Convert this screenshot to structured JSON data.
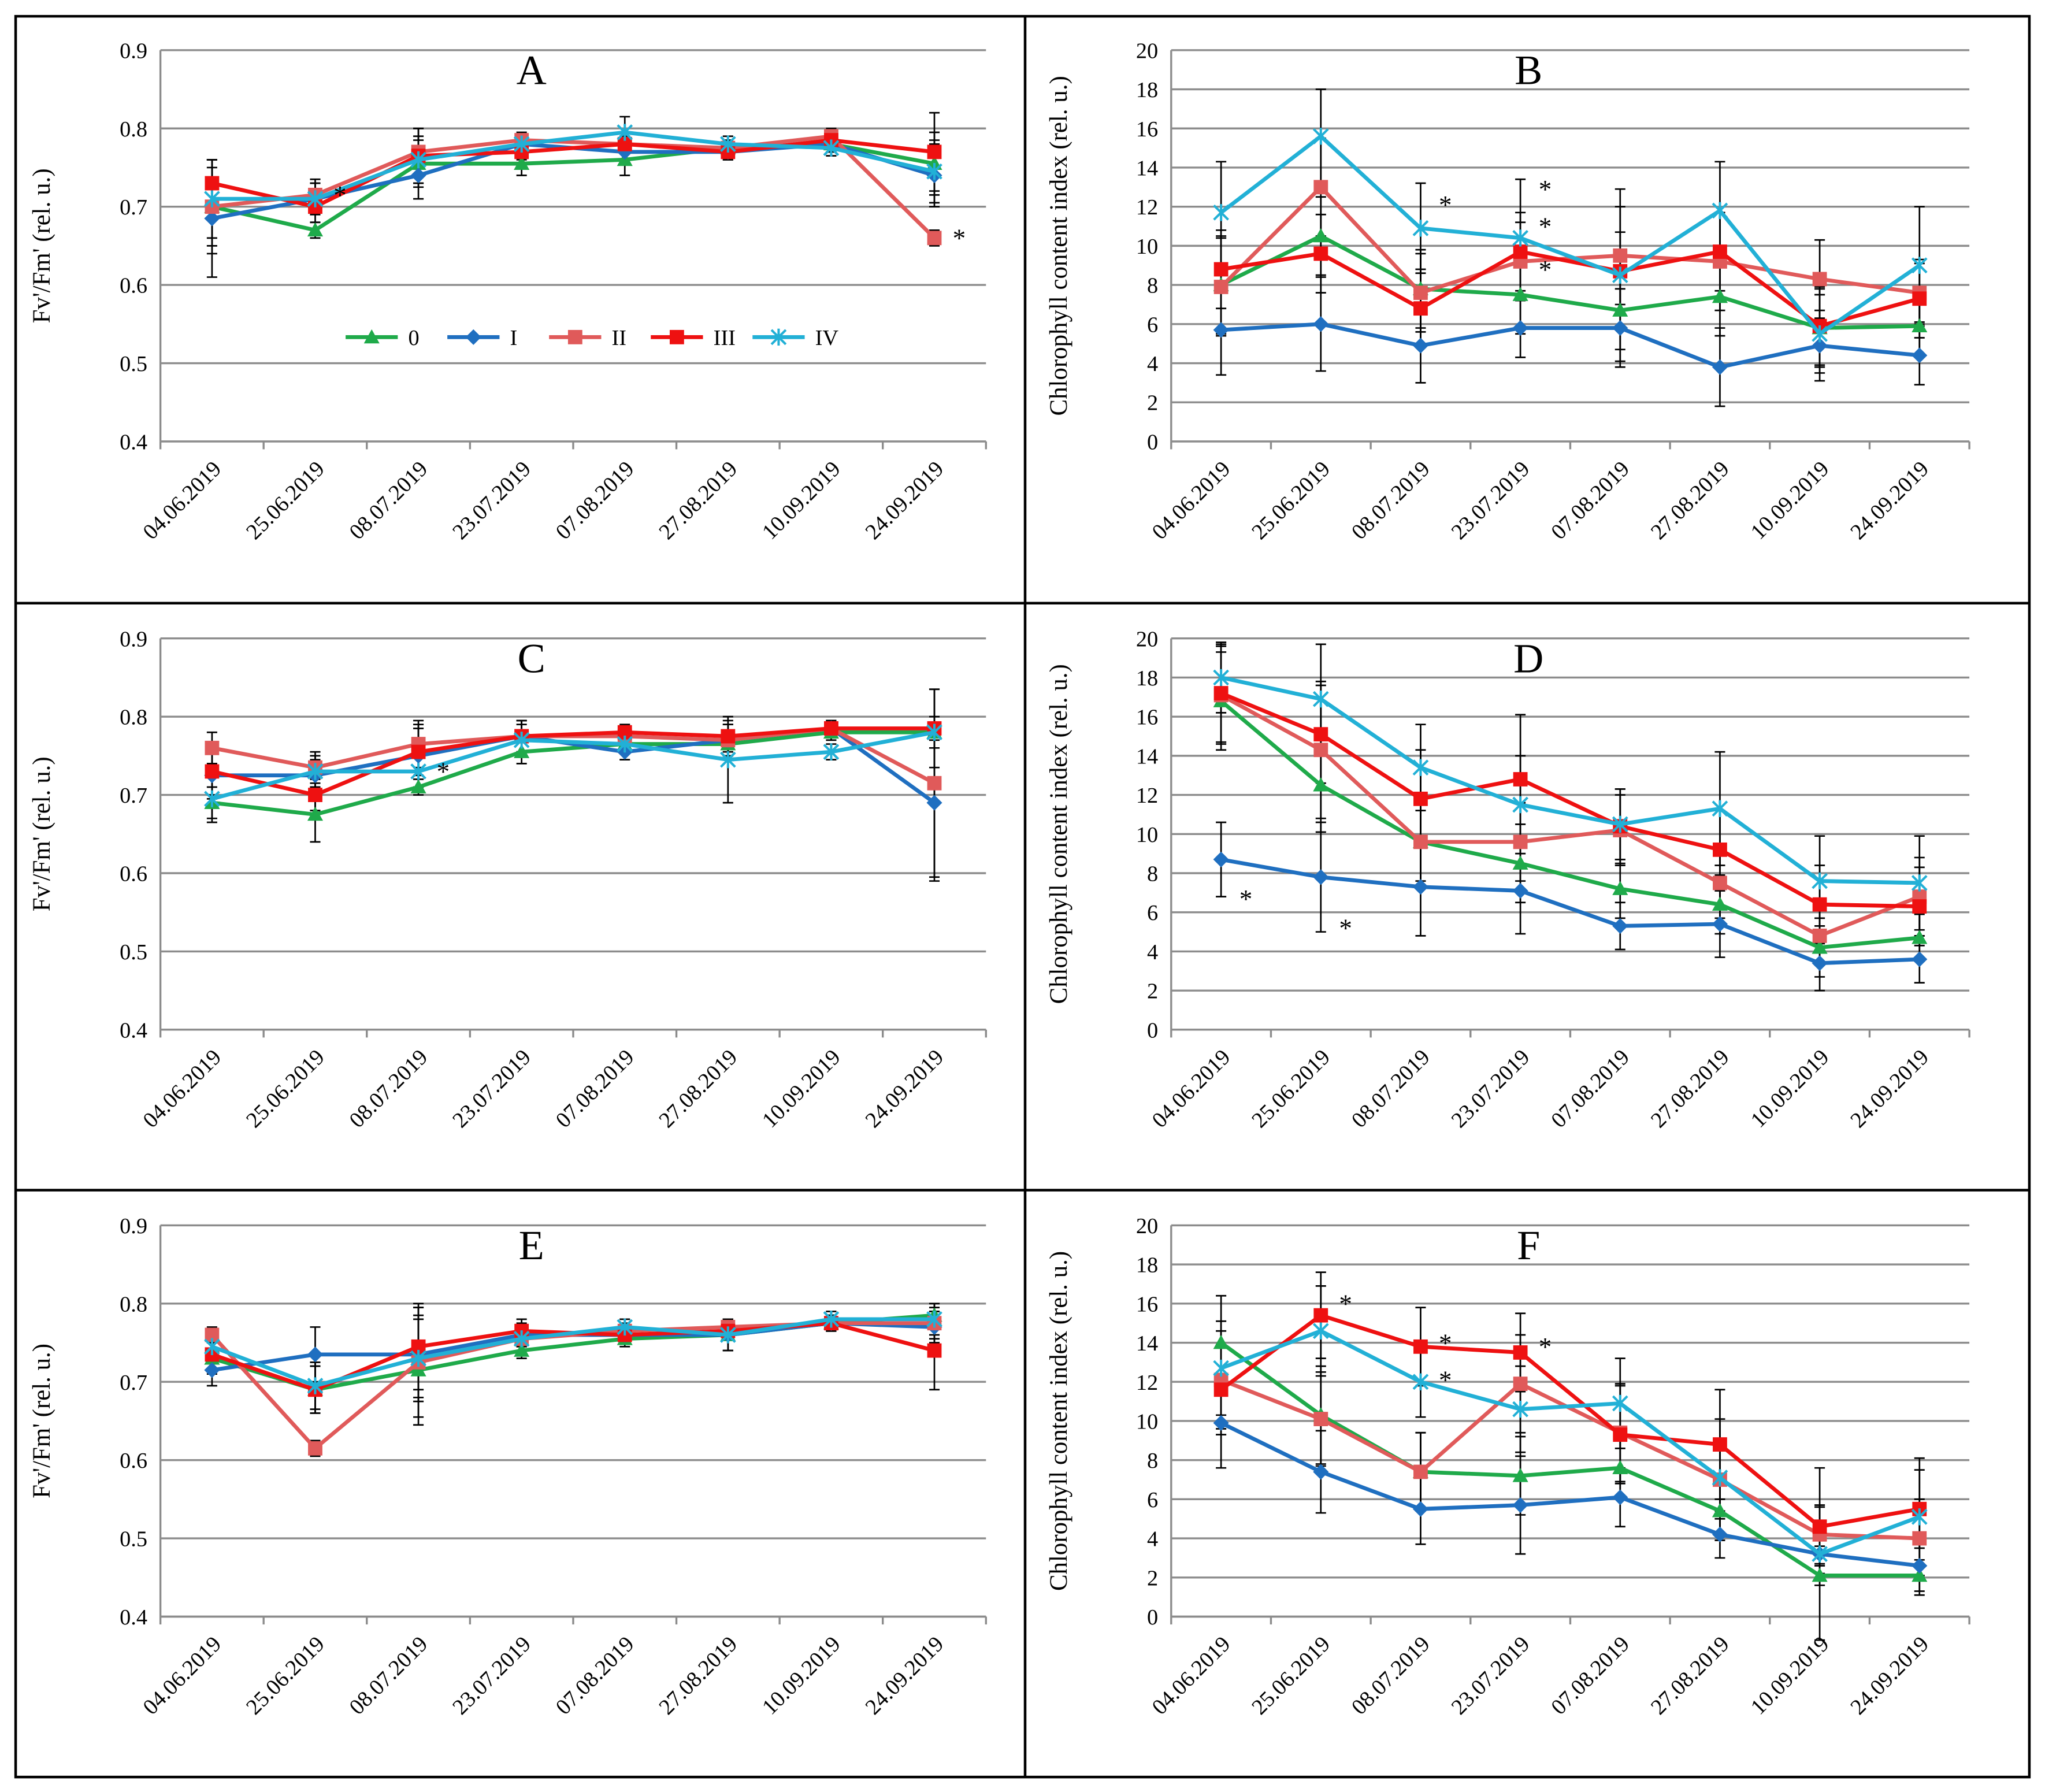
{
  "chart_data": [
    {
      "type": "line",
      "title": "A",
      "y_label": "Fv'/Fm' (rel. u.)",
      "legend": true,
      "grid": true,
      "categories": [
        "04.06.2019",
        "25.06.2019",
        "08.07.2019",
        "23.07.2019",
        "07.08.2019",
        "27.08.2019",
        "10.09.2019",
        "24.09.2019"
      ],
      "ylim": [
        0.4,
        0.9
      ],
      "yticks": [
        0.4,
        0.5,
        0.6,
        0.7,
        0.8,
        0.9
      ],
      "series": [
        {
          "name": "0",
          "color": "#1faa4a",
          "marker": "triangle",
          "values": [
            0.7,
            0.67,
            0.755,
            0.755,
            0.76,
            0.775,
            0.78,
            0.755
          ],
          "errors": [
            0.05,
            0.01,
            0.03,
            0.015,
            0.02,
            0.01,
            0.01,
            0.04
          ]
        },
        {
          "name": "I",
          "color": "#1f6fc0",
          "marker": "diamond",
          "values": [
            0.685,
            0.71,
            0.74,
            0.78,
            0.77,
            0.77,
            0.78,
            0.74
          ],
          "errors": [
            0.075,
            0.02,
            0.03,
            0.01,
            0.01,
            0.01,
            0.01,
            0.04
          ]
        },
        {
          "name": "II",
          "color": "#e05a5a",
          "marker": "square",
          "values": [
            0.7,
            0.715,
            0.77,
            0.785,
            0.78,
            0.775,
            0.79,
            0.66
          ],
          "errors": [
            0.06,
            0.02,
            0.03,
            0.01,
            0.01,
            0.01,
            0.01,
            0.01
          ]
        },
        {
          "name": "III",
          "color": "#ee1111",
          "marker": "square",
          "values": [
            0.73,
            0.7,
            0.765,
            0.77,
            0.78,
            0.77,
            0.785,
            0.77
          ],
          "errors": [
            0.03,
            0.02,
            0.035,
            0.01,
            0.01,
            0.01,
            0.01,
            0.05
          ]
        },
        {
          "name": "IV",
          "color": "#22b0d6",
          "marker": "asterisk",
          "values": [
            0.71,
            0.71,
            0.76,
            0.78,
            0.795,
            0.78,
            0.775,
            0.745
          ],
          "errors": [
            0.05,
            0.02,
            0.03,
            0.01,
            0.02,
            0.01,
            0.01,
            0.04
          ]
        }
      ],
      "annotations": [
        {
          "text": "*",
          "category": 1,
          "y": 0.72
        },
        {
          "text": "*",
          "category": 7,
          "y": 0.665
        }
      ]
    },
    {
      "type": "line",
      "title": "B",
      "y_label": "Chlorophyll content index (rel. u.)",
      "legend": false,
      "grid": true,
      "categories": [
        "04.06.2019",
        "25.06.2019",
        "08.07.2019",
        "23.07.2019",
        "07.08.2019",
        "27.08.2019",
        "10.09.2019",
        "24.09.2019"
      ],
      "ylim": [
        0,
        20
      ],
      "yticks": [
        0,
        2,
        4,
        6,
        8,
        10,
        12,
        14,
        16,
        18,
        20
      ],
      "series": [
        {
          "name": "0",
          "color": "#1faa4a",
          "marker": "triangle",
          "values": [
            8,
            10.5,
            7.8,
            7.5,
            6.7,
            7.4,
            5.8,
            5.9
          ],
          "errors": [
            2.5,
            2,
            2,
            2,
            2,
            2,
            2,
            1.5
          ]
        },
        {
          "name": "I",
          "color": "#1f6fc0",
          "marker": "diamond",
          "values": [
            5.7,
            6,
            4.9,
            5.8,
            5.8,
            3.8,
            4.9,
            4.4
          ],
          "errors": [
            2.3,
            2.4,
            1.9,
            1.5,
            2,
            2,
            1.8,
            1.5
          ]
        },
        {
          "name": "II",
          "color": "#e05a5a",
          "marker": "square",
          "values": [
            7.9,
            13,
            7.6,
            9.2,
            9.5,
            9.2,
            8.3,
            7.6
          ],
          "errors": [
            2.5,
            2.5,
            2,
            2,
            2.5,
            2.5,
            2,
            1.5
          ]
        },
        {
          "name": "III",
          "color": "#ee1111",
          "marker": "square",
          "values": [
            8.8,
            9.6,
            6.8,
            9.7,
            8.7,
            9.7,
            5.9,
            7.3
          ],
          "errors": [
            2,
            2,
            2,
            2,
            2,
            2,
            2,
            2
          ]
        },
        {
          "name": "IV",
          "color": "#22b0d6",
          "marker": "asterisk",
          "values": [
            11.7,
            15.6,
            10.9,
            10.4,
            8.5,
            11.8,
            5.5,
            9
          ],
          "errors": [
            2.6,
            2.4,
            2.3,
            3,
            4.4,
            2.5,
            2,
            3
          ]
        }
      ],
      "annotations": [
        {
          "text": "*",
          "category": 2,
          "y": 12.3
        },
        {
          "text": "*",
          "category": 3,
          "y": 13.1
        },
        {
          "text": "*",
          "category": 3,
          "y": 11.2
        },
        {
          "text": "*",
          "category": 3,
          "y": 9.0
        }
      ]
    },
    {
      "type": "line",
      "title": "C",
      "y_label": "Fv'/Fm' (rel. u.)",
      "legend": false,
      "grid": true,
      "categories": [
        "04.06.2019",
        "25.06.2019",
        "08.07.2019",
        "23.07.2019",
        "07.08.2019",
        "27.08.2019",
        "10.09.2019",
        "24.09.2019"
      ],
      "ylim": [
        0.4,
        0.9
      ],
      "yticks": [
        0.4,
        0.5,
        0.6,
        0.7,
        0.8,
        0.9
      ],
      "series": [
        {
          "name": "0",
          "color": "#1faa4a",
          "marker": "triangle",
          "values": [
            0.69,
            0.675,
            0.71,
            0.755,
            0.765,
            0.765,
            0.78,
            0.78
          ],
          "errors": [
            0.02,
            0.035,
            0.01,
            0.015,
            0.01,
            0.01,
            0.01,
            0.01
          ]
        },
        {
          "name": "I",
          "color": "#1f6fc0",
          "marker": "diamond",
          "values": [
            0.725,
            0.725,
            0.75,
            0.775,
            0.755,
            0.77,
            0.785,
            0.69
          ],
          "errors": [
            0.03,
            0.02,
            0.04,
            0.02,
            0.01,
            0.02,
            0.01,
            0.1
          ]
        },
        {
          "name": "II",
          "color": "#e05a5a",
          "marker": "square",
          "values": [
            0.76,
            0.735,
            0.765,
            0.775,
            0.775,
            0.77,
            0.785,
            0.715
          ],
          "errors": [
            0.02,
            0.02,
            0.03,
            0.02,
            0.01,
            0.02,
            0.01,
            0.12
          ]
        },
        {
          "name": "III",
          "color": "#ee1111",
          "marker": "square",
          "values": [
            0.73,
            0.7,
            0.755,
            0.775,
            0.78,
            0.775,
            0.785,
            0.785
          ],
          "errors": [
            0.03,
            0.02,
            0.03,
            0.02,
            0.01,
            0.02,
            0.01,
            0.05
          ]
        },
        {
          "name": "IV",
          "color": "#22b0d6",
          "marker": "asterisk",
          "values": [
            0.695,
            0.73,
            0.73,
            0.77,
            0.765,
            0.745,
            0.755,
            0.78
          ],
          "errors": [
            0.03,
            0.02,
            0.02,
            0.02,
            0.01,
            0.055,
            0.01,
            0.02
          ]
        }
      ],
      "annotations": [
        {
          "text": "*",
          "category": 2,
          "y": 0.735
        }
      ]
    },
    {
      "type": "line",
      "title": "D",
      "y_label": "Chlorophyll content index (rel. u.)",
      "legend": false,
      "grid": true,
      "categories": [
        "04.06.2019",
        "25.06.2019",
        "08.07.2019",
        "23.07.2019",
        "07.08.2019",
        "27.08.2019",
        "10.09.2019",
        "24.09.2019"
      ],
      "ylim": [
        0,
        20
      ],
      "yticks": [
        0,
        2,
        4,
        6,
        8,
        10,
        12,
        14,
        16,
        18,
        20
      ],
      "series": [
        {
          "name": "0",
          "color": "#1faa4a",
          "marker": "triangle",
          "values": [
            16.8,
            12.5,
            9.6,
            8.5,
            7.2,
            6.4,
            4.2,
            4.7
          ],
          "errors": [
            2.5,
            2.4,
            2,
            2,
            1.5,
            1.5,
            1.5,
            1.2
          ]
        },
        {
          "name": "I",
          "color": "#1f6fc0",
          "marker": "diamond",
          "values": [
            8.7,
            7.8,
            7.3,
            7.1,
            5.3,
            5.4,
            3.4,
            3.6
          ],
          "errors": [
            1.9,
            2.8,
            2.5,
            2.2,
            1.2,
            1.7,
            1.4,
            1.2
          ]
        },
        {
          "name": "II",
          "color": "#e05a5a",
          "marker": "square",
          "values": [
            17.1,
            14.3,
            9.6,
            9.6,
            10.2,
            7.5,
            4.8,
            6.8
          ],
          "errors": [
            2.5,
            3.5,
            2.2,
            2,
            1.8,
            1.8,
            1.5,
            2
          ]
        },
        {
          "name": "III",
          "color": "#ee1111",
          "marker": "square",
          "values": [
            17.2,
            15.1,
            11.8,
            12.8,
            10.4,
            9.2,
            6.4,
            6.3
          ],
          "errors": [
            2.5,
            2.5,
            2.5,
            3.3,
            1.9,
            2,
            2,
            2
          ]
        },
        {
          "name": "IV",
          "color": "#22b0d6",
          "marker": "asterisk",
          "values": [
            18,
            16.9,
            13.4,
            11.5,
            10.5,
            11.3,
            7.6,
            7.5
          ],
          "errors": [
            1.8,
            2.8,
            2.2,
            2.5,
            1.8,
            2.9,
            2.3,
            2.4
          ]
        }
      ],
      "annotations": [
        {
          "text": "*",
          "category": 0,
          "y": 6.9
        },
        {
          "text": "*",
          "category": 1,
          "y": 5.4
        }
      ]
    },
    {
      "type": "line",
      "title": "E",
      "y_label": "Fv'/Fm' (rel. u.)",
      "legend": false,
      "grid": true,
      "categories": [
        "04.06.2019",
        "25.06.2019",
        "08.07.2019",
        "23.07.2019",
        "07.08.2019",
        "27.08.2019",
        "10.09.2019",
        "24.09.2019"
      ],
      "ylim": [
        0.4,
        0.9
      ],
      "yticks": [
        0.4,
        0.5,
        0.6,
        0.7,
        0.8,
        0.9
      ],
      "series": [
        {
          "name": "0",
          "color": "#1faa4a",
          "marker": "triangle",
          "values": [
            0.73,
            0.69,
            0.715,
            0.74,
            0.755,
            0.76,
            0.775,
            0.785
          ],
          "errors": [
            0.02,
            0.03,
            0.07,
            0.01,
            0.01,
            0.02,
            0.01,
            0.015
          ]
        },
        {
          "name": "I",
          "color": "#1f6fc0",
          "marker": "diamond",
          "values": [
            0.715,
            0.735,
            0.735,
            0.76,
            0.76,
            0.76,
            0.775,
            0.77
          ],
          "errors": [
            0.02,
            0.035,
            0.06,
            0.015,
            0.01,
            0.02,
            0.01,
            0.02
          ]
        },
        {
          "name": "II",
          "color": "#e05a5a",
          "marker": "square",
          "values": [
            0.76,
            0.615,
            0.725,
            0.755,
            0.765,
            0.77,
            0.775,
            0.775
          ],
          "errors": [
            0.01,
            0.01,
            0.07,
            0.01,
            0.01,
            0.01,
            0.01,
            0.02
          ]
        },
        {
          "name": "III",
          "color": "#ee1111",
          "marker": "square",
          "values": [
            0.735,
            0.69,
            0.745,
            0.765,
            0.76,
            0.765,
            0.775,
            0.74
          ],
          "errors": [
            0.02,
            0.03,
            0.055,
            0.015,
            0.01,
            0.01,
            0.01,
            0.05
          ]
        },
        {
          "name": "IV",
          "color": "#22b0d6",
          "marker": "asterisk",
          "values": [
            0.745,
            0.695,
            0.73,
            0.755,
            0.77,
            0.76,
            0.78,
            0.78
          ],
          "errors": [
            0.02,
            0.03,
            0.05,
            0.015,
            0.01,
            0.02,
            0.01,
            0.02
          ]
        }
      ],
      "annotations": []
    },
    {
      "type": "line",
      "title": "F",
      "y_label": "Chlorophyll content index (rel. u.)",
      "legend": false,
      "grid": true,
      "categories": [
        "04.06.2019",
        "25.06.2019",
        "08.07.2019",
        "23.07.2019",
        "07.08.2019",
        "27.08.2019",
        "10.09.2019",
        "24.09.2019"
      ],
      "ylim": [
        0,
        20
      ],
      "yticks": [
        0,
        2,
        4,
        6,
        8,
        10,
        12,
        14,
        16,
        18,
        20
      ],
      "series": [
        {
          "name": "0",
          "color": "#1faa4a",
          "marker": "triangle",
          "values": [
            14,
            10.3,
            7.4,
            7.2,
            7.6,
            5.4,
            2.1,
            2.1
          ],
          "errors": [
            2.4,
            2.5,
            2,
            2,
            1.5,
            1.5,
            0.5,
            0.8
          ]
        },
        {
          "name": "I",
          "color": "#1f6fc0",
          "marker": "diamond",
          "values": [
            9.9,
            7.4,
            5.5,
            5.7,
            6.1,
            4.2,
            3.2,
            2.6
          ],
          "errors": [
            2.3,
            2.1,
            1.8,
            2.5,
            1.5,
            1.2,
            1,
            1.5
          ]
        },
        {
          "name": "II",
          "color": "#e05a5a",
          "marker": "square",
          "values": [
            12.1,
            10.1,
            7.4,
            11.9,
            9.4,
            7,
            4.2,
            4
          ],
          "errors": [
            2.5,
            2.4,
            2,
            2.5,
            2.5,
            2,
            1.5,
            2
          ]
        },
        {
          "name": "III",
          "color": "#ee1111",
          "marker": "square",
          "values": [
            11.6,
            15.4,
            13.8,
            13.5,
            9.3,
            8.8,
            4.6,
            5.5
          ],
          "errors": [
            2.3,
            2.2,
            2,
            2,
            2.5,
            2.8,
            1,
            2
          ]
        },
        {
          "name": "IV",
          "color": "#22b0d6",
          "marker": "asterisk",
          "values": [
            12.7,
            14.6,
            12,
            10.6,
            10.9,
            7.1,
            3.2,
            5.1
          ],
          "errors": [
            2.4,
            2.3,
            1.8,
            2.2,
            2.3,
            3,
            4.4,
            3
          ]
        }
      ],
      "annotations": [
        {
          "text": "*",
          "category": 1,
          "y": 16.2
        },
        {
          "text": "*",
          "category": 2,
          "y": 14.2
        },
        {
          "text": "*",
          "category": 2,
          "y": 12.3
        },
        {
          "text": "*",
          "category": 3,
          "y": 14.0
        }
      ]
    }
  ]
}
